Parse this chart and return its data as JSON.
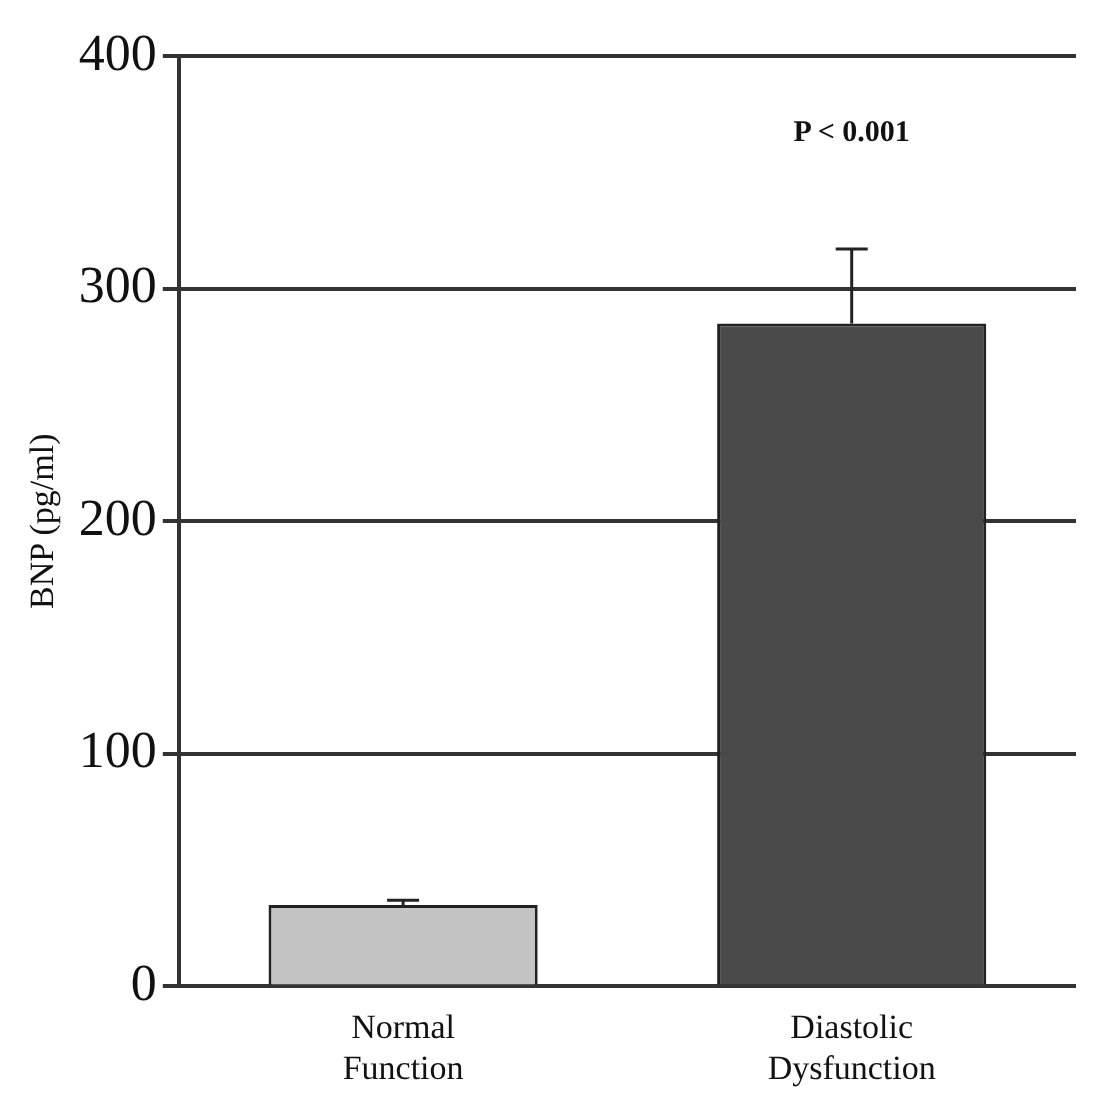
{
  "chart_data": {
    "type": "bar",
    "ylabel": "BNP (pg/ml)",
    "categories": [
      "Normal Function",
      "Diastolic Dysfunction"
    ],
    "values": [
      35,
      285
    ],
    "errors": [
      2,
      32
    ],
    "colors": [
      "#c4c4c4",
      "#4a4a4a"
    ],
    "ylim": [
      0,
      400
    ],
    "yticks": [
      0,
      100,
      200,
      300,
      400
    ],
    "grid": "y",
    "annotations": [
      "P < 0.001"
    ]
  }
}
